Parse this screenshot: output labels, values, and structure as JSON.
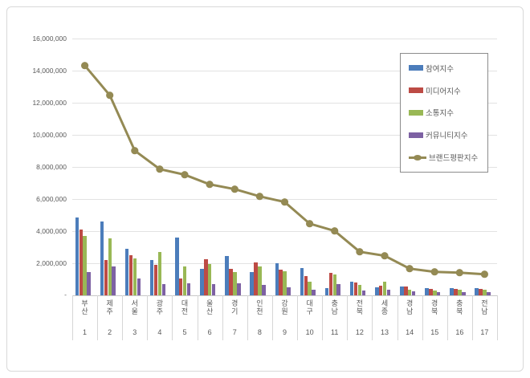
{
  "chart_data": {
    "type": "bar+line",
    "title": "",
    "categories": [
      "부산",
      "제주",
      "서울",
      "광주",
      "대전",
      "울산",
      "경기",
      "인천",
      "강원",
      "대구",
      "충남",
      "전북",
      "세종",
      "경남",
      "경북",
      "충북",
      "전남"
    ],
    "category_ranks": [
      "1",
      "2",
      "3",
      "4",
      "5",
      "6",
      "7",
      "8",
      "9",
      "10",
      "11",
      "12",
      "13",
      "14",
      "15",
      "16",
      "17"
    ],
    "series": [
      {
        "name": "참여지수",
        "type": "bar",
        "color": "#4C7DBB",
        "values": [
          4850000,
          4600000,
          2900000,
          2200000,
          3600000,
          1650000,
          2450000,
          1450000,
          2000000,
          1700000,
          450000,
          850000,
          500000,
          550000,
          450000,
          450000,
          450000
        ]
      },
      {
        "name": "미디어지수",
        "type": "bar",
        "color": "#BD4B45",
        "values": [
          4100000,
          2200000,
          2500000,
          1900000,
          1050000,
          2250000,
          1650000,
          2050000,
          1600000,
          1200000,
          1400000,
          800000,
          600000,
          550000,
          400000,
          400000,
          400000
        ]
      },
      {
        "name": "소통지수",
        "type": "bar",
        "color": "#99B855",
        "values": [
          3700000,
          3550000,
          2300000,
          2700000,
          1800000,
          1950000,
          1450000,
          1800000,
          1500000,
          850000,
          1300000,
          650000,
          850000,
          350000,
          300000,
          350000,
          350000
        ]
      },
      {
        "name": "커뮤니티지수",
        "type": "bar",
        "color": "#7D61A3",
        "values": [
          1450000,
          1800000,
          1050000,
          700000,
          750000,
          700000,
          750000,
          650000,
          500000,
          350000,
          700000,
          300000,
          350000,
          250000,
          200000,
          200000,
          200000
        ]
      },
      {
        "name": "브랜드평판지수",
        "type": "line",
        "color": "#948A54",
        "values": [
          14300000,
          12450000,
          9000000,
          7850000,
          7500000,
          6900000,
          6600000,
          6150000,
          5800000,
          4450000,
          4000000,
          2700000,
          2450000,
          1650000,
          1450000,
          1400000,
          1300000
        ]
      }
    ],
    "y_axis": {
      "min": 0,
      "max": 16000000,
      "step": 2000000,
      "tick_labels": [
        "16,000,000",
        "14,000,000",
        "12,000,000",
        "10,000,000",
        "8,000,000",
        "6,000,000",
        "4,000,000",
        "2,000,000"
      ],
      "zero_label": "-"
    },
    "legend_position": "top-right",
    "grid": true
  },
  "frame": {
    "background": "#ffffff",
    "border_color": "#d9d9d9"
  }
}
